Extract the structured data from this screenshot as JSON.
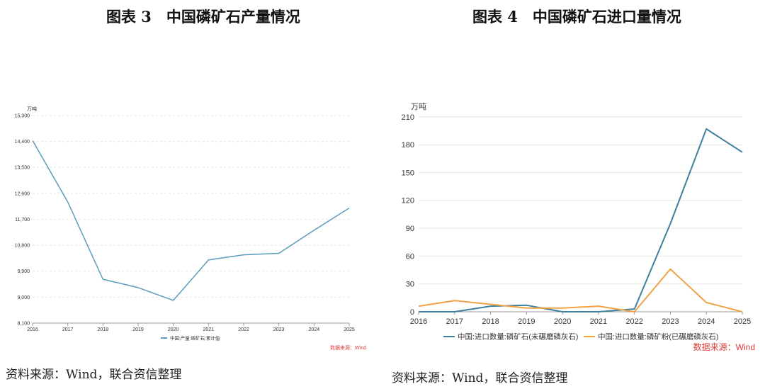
{
  "left_figure": {
    "title": "图表 3　中国磷矿石产量情况",
    "source": "资料来源：Wind，联合资信整理"
  },
  "right_figure": {
    "title": "图表 4　中国磷矿石进口量情况",
    "source": "资料来源：Wind，联合资信整理"
  },
  "chart_data": [
    {
      "type": "line",
      "unit_label": "万吨",
      "x": [
        "2016",
        "2017",
        "2018",
        "2019",
        "2020",
        "2021",
        "2022",
        "2023",
        "2024",
        "2025"
      ],
      "series": [
        {
          "name": "中国:产量:磷矿石:累计值",
          "color": "#5b9bbd",
          "values": [
            14430,
            12300,
            9620,
            9330,
            8890,
            10290,
            10470,
            10520,
            11320,
            12090
          ]
        }
      ],
      "ylim": [
        8100,
        15300
      ],
      "yticks": [
        8100,
        9000,
        9900,
        10800,
        11700,
        12600,
        13500,
        14400,
        15300
      ],
      "ytick_labels": [
        "8,100",
        "9,000",
        "9,900",
        "10,800",
        "11,700",
        "12,600",
        "13,500",
        "14,400",
        "15,300"
      ],
      "grid": true,
      "legend_position": "bottom",
      "data_source": "数据来源：Wind"
    },
    {
      "type": "line",
      "unit_label": "万吨",
      "x": [
        "2016",
        "2017",
        "2018",
        "2019",
        "2020",
        "2021",
        "2022",
        "2023",
        "2024",
        "2025"
      ],
      "series": [
        {
          "name": "中国:进口数量:磷矿石(未碾磨磷灰石)",
          "color": "#3f7f9f",
          "values": [
            0,
            0,
            6,
            7,
            0,
            0,
            3,
            95,
            197,
            172
          ]
        },
        {
          "name": "中国:进口数量:磷矿粉(已碾磨磷灰石)",
          "color": "#f0a345",
          "values": [
            6,
            12,
            8,
            4,
            4,
            6,
            0,
            46,
            10,
            0
          ]
        }
      ],
      "ylim": [
        0,
        210
      ],
      "yticks": [
        0,
        30,
        60,
        90,
        120,
        150,
        180,
        210
      ],
      "ytick_labels": [
        "0",
        "30",
        "60",
        "90",
        "120",
        "150",
        "180",
        "210"
      ],
      "grid": true,
      "legend_position": "bottom",
      "data_source": "数据来源：Wind"
    }
  ]
}
